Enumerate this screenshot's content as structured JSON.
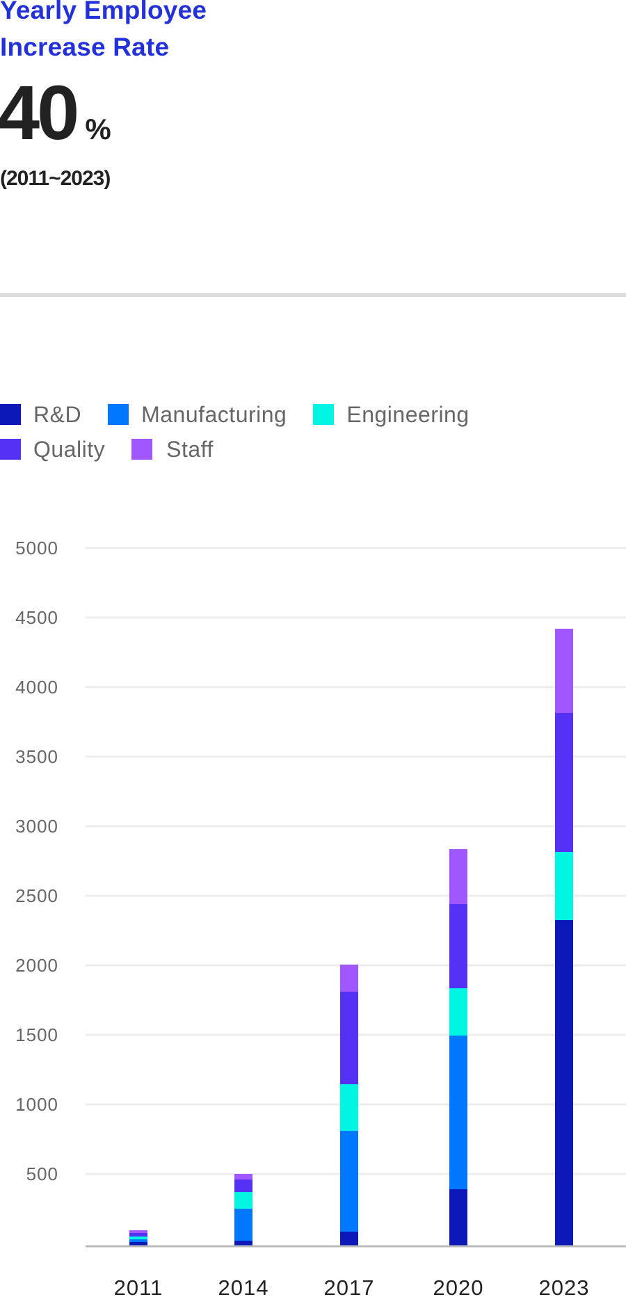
{
  "header": {
    "title": "Yearly Employee Increase Rate",
    "stat_value": "40",
    "stat_unit": "%",
    "period": "(2011~2023)"
  },
  "colors": {
    "title": "#2331db",
    "R&D": "#0c18b8",
    "Manufacturing": "#0077ff",
    "Engineering": "#00f5e3",
    "Quality": "#5530f5",
    "Staff": "#a057ff"
  },
  "chart_data": {
    "type": "bar",
    "stacked": true,
    "title": "",
    "xlabel": "",
    "ylabel": "",
    "categories": [
      "2011",
      "2014",
      "2017",
      "2020",
      "2023"
    ],
    "series": [
      {
        "name": "R&D",
        "values": [
          10,
          20,
          85,
          390,
          2325
        ]
      },
      {
        "name": "Manufacturing",
        "values": [
          20,
          230,
          725,
          1105,
          0
        ]
      },
      {
        "name": "Engineering",
        "values": [
          20,
          120,
          335,
          340,
          490
        ]
      },
      {
        "name": "Quality",
        "values": [
          25,
          90,
          665,
          605,
          1000
        ]
      },
      {
        "name": "Staff",
        "values": [
          20,
          40,
          195,
          395,
          605
        ]
      }
    ],
    "yticks": [
      500,
      1000,
      1500,
      2000,
      2500,
      3000,
      3500,
      4000,
      4500,
      5000
    ],
    "ylim": [
      0,
      5000
    ],
    "grid": true,
    "legend": {
      "position": "top-left",
      "rows": [
        [
          "R&D",
          "Manufacturing",
          "Engineering"
        ],
        [
          "Quality",
          "Staff"
        ]
      ]
    }
  }
}
